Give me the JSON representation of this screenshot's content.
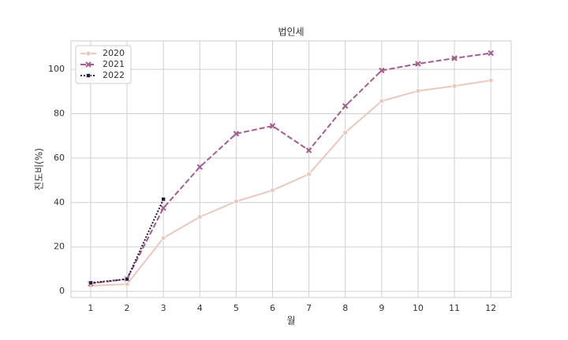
{
  "chart_data": {
    "type": "line",
    "title": "법인세",
    "xlabel": "월",
    "ylabel": "진도비(%)",
    "x": [
      1,
      2,
      3,
      4,
      5,
      6,
      7,
      8,
      9,
      10,
      11,
      12
    ],
    "series": [
      {
        "name": "2020",
        "color": "#ebc7bd",
        "marker": "circle",
        "dash": "solid",
        "values": [
          2.5,
          3.2,
          24,
          33.5,
          40.5,
          45.5,
          52.8,
          71.5,
          85.7,
          90.3,
          92.5,
          95
        ]
      },
      {
        "name": "2021",
        "color": "#a65c8c",
        "marker": "x",
        "dash": "dashed",
        "values": [
          3.5,
          5.5,
          37.5,
          56,
          71,
          74.5,
          63.5,
          83.5,
          99.5,
          102.5,
          105,
          107.3
        ]
      },
      {
        "name": "2022",
        "color": "#2b1b3f",
        "marker": "square",
        "dash": "dotted",
        "values": [
          3.8,
          5.5,
          41.5,
          null,
          null,
          null,
          null,
          null,
          null,
          null,
          null,
          null
        ]
      }
    ],
    "xlim": [
      0.46,
      12.56
    ],
    "xticks": [
      1,
      2,
      3,
      4,
      5,
      6,
      7,
      8,
      9,
      10,
      11,
      12
    ],
    "ylim": [
      -2.8,
      112.8
    ],
    "yticks": [
      0,
      20,
      40,
      60,
      80,
      100
    ],
    "grid": true,
    "legend": "upper left"
  }
}
